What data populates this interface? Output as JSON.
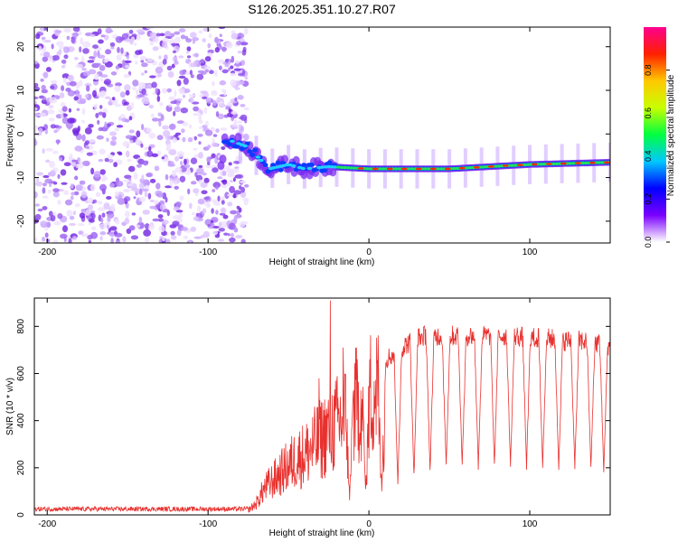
{
  "figure_title": "S126.2025.351.10.27.R07",
  "colors": {
    "snr_line": "#e8312e",
    "axis": "#000000"
  },
  "chart_data": [
    {
      "type": "heatmap",
      "title": "S126.2025.351.10.27.R07",
      "xlabel": "Height of straight line (km)",
      "ylabel": "Frequency (Hz)",
      "xlim": [
        -208,
        150
      ],
      "ylim": [
        -25,
        24.5
      ],
      "x_ticks": [
        -200,
        -100,
        0,
        100
      ],
      "x_tick_labels": [
        "-200",
        "-100",
        "0",
        "100"
      ],
      "y_ticks": [
        -20,
        -10,
        0,
        10,
        20
      ],
      "y_tick_labels": [
        "-20",
        "-10",
        "0",
        "10",
        "20"
      ],
      "colorbar": {
        "label": "Normalized spectral amplitude",
        "range": [
          0,
          1
        ],
        "ticks": [
          0.0,
          0.2,
          0.4,
          0.6,
          0.8
        ],
        "tick_labels": [
          "0.0",
          "0.2",
          "0.4",
          "0.6",
          "0.8"
        ],
        "colormap": [
          "#ffffff",
          "#7a00ff",
          "#0000ff",
          "#00c8ff",
          "#00ff40",
          "#c8ff00",
          "#ffc800",
          "#ff2000",
          "#ff0090"
        ]
      },
      "noise_region_x": [
        -208,
        -80
      ],
      "ridge": [
        {
          "x": -90,
          "f": -1
        },
        {
          "x": -75,
          "f": -3
        },
        {
          "x": -62,
          "f": -8
        },
        {
          "x": -50,
          "f": -7
        },
        {
          "x": -40,
          "f": -8
        },
        {
          "x": -25,
          "f": -7.5
        },
        {
          "x": 0,
          "f": -8
        },
        {
          "x": 50,
          "f": -8
        },
        {
          "x": 100,
          "f": -7
        },
        {
          "x": 150,
          "f": -6.5
        }
      ],
      "grid": false
    },
    {
      "type": "line",
      "xlabel": "Height of straight line (km)",
      "ylabel": "SNR (10 * v/v)",
      "xlim": [
        -208,
        150
      ],
      "ylim": [
        0,
        920
      ],
      "x_ticks": [
        -200,
        -100,
        0,
        100
      ],
      "x_tick_labels": [
        "-200",
        "-100",
        "0",
        "100"
      ],
      "y_ticks": [
        0,
        200,
        400,
        600,
        800
      ],
      "y_tick_labels": [
        "0",
        "200",
        "400",
        "600",
        "800"
      ],
      "series": [
        {
          "name": "SNR",
          "x": [
            -208,
            -150,
            -100,
            -75,
            -70,
            -65,
            -60,
            -55,
            -50,
            -45,
            -40,
            -35,
            -30,
            -25,
            -20,
            -15,
            -10,
            -5,
            0,
            5,
            10,
            15,
            20,
            25,
            30,
            35,
            40,
            50,
            60,
            70,
            80,
            90,
            100,
            110,
            120,
            130,
            140,
            150
          ],
          "values": [
            25,
            25,
            25,
            25,
            60,
            140,
            180,
            220,
            260,
            300,
            320,
            360,
            400,
            450,
            480,
            520,
            560,
            600,
            640,
            680,
            700,
            720,
            750,
            770,
            790,
            800,
            800,
            800,
            800,
            800,
            800,
            800,
            790,
            790,
            780,
            780,
            770,
            760
          ],
          "dropouts": {
            "x": [
              -12,
              -2,
              8,
              18,
              28,
              38,
              48,
              58,
              68,
              78,
              88,
              98,
              108,
              118,
              128,
              138,
              146
            ],
            "floor": [
              60,
              80,
              100,
              120,
              150,
              170,
              185,
              190,
              190,
              190,
              190,
              190,
              190,
              185,
              185,
              180,
              170
            ]
          },
          "peak_spikes": [
            {
              "x": -24,
              "value": 910
            },
            {
              "x": -16,
              "value": 710
            },
            {
              "x": -31,
              "value": 580
            }
          ]
        }
      ],
      "grid": false
    }
  ]
}
